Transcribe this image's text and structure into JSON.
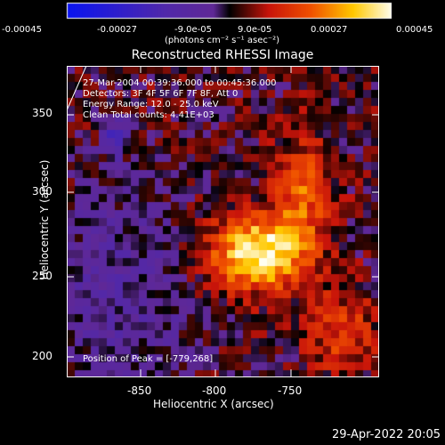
{
  "colorbar": {
    "ticks": [
      "-0.00045",
      "-0.00027",
      "-9.0e-05",
      "9.0e-05",
      "0.00027",
      "0.00045"
    ],
    "units": "(photons cm⁻² s⁻¹ asec⁻²)"
  },
  "image": {
    "title": "Reconstructed RHESSI Image",
    "info": [
      "27-Mar-2004 00:39:36.000 to 00:45:36.000",
      "Detectors: 3F 4F 5F 6F 7F 8F, Att 0",
      "Energy Range: 12.0 - 25.0 keV",
      "Clean     Total counts: 4.41E+03"
    ],
    "peak_label": "Position of Peak = [-779,268]",
    "xlabel": "Heliocentric X (arcsec)",
    "ylabel": "Heliocentric Y (arcsec)",
    "xticks": [
      "-850",
      "-800",
      "-750"
    ],
    "yticks": [
      "350",
      "300",
      "250",
      "200"
    ]
  },
  "timestamp": "29-Apr-2022 20:05"
}
